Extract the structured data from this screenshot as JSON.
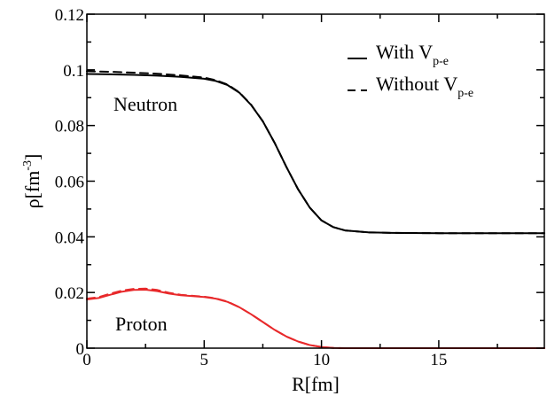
{
  "chart_data": {
    "type": "line",
    "xlabel": "R[fm]",
    "ylabel": {
      "base": "ρ[fm",
      "sup": "-3",
      "close": "]"
    },
    "xlim": [
      0,
      19.5
    ],
    "ylim": [
      0,
      0.12
    ],
    "x_ticks": [
      0,
      5,
      10,
      15
    ],
    "y_ticks": [
      0,
      0.02,
      0.04,
      0.06,
      0.08,
      0.1,
      0.12
    ],
    "x_tick_labels": [
      "0",
      "5",
      "10",
      "15"
    ],
    "y_tick_labels": [
      "0",
      "0.02",
      "0.04",
      "0.06",
      "0.08",
      "0.1",
      "0.12"
    ],
    "grid": false,
    "legend": {
      "placement": "top-right",
      "entries": [
        {
          "style": "solid",
          "text": "With V",
          "sub": "p-e"
        },
        {
          "style": "dashed",
          "text": "Without V",
          "sub": "p-e"
        }
      ]
    },
    "annotations": [
      {
        "text": "Neutron",
        "color": "#000000"
      },
      {
        "text": "Proton",
        "color": "#e8292b"
      }
    ],
    "series": [
      {
        "group": "neutron",
        "style": "solid",
        "color": "#000000",
        "x": [
          0,
          1,
          2,
          3,
          4,
          5,
          5.5,
          6,
          6.5,
          7,
          7.5,
          8,
          8.5,
          9,
          9.5,
          10,
          10.5,
          11,
          12,
          13,
          15,
          19.5
        ],
        "y": [
          0.0985,
          0.0984,
          0.0982,
          0.0979,
          0.0975,
          0.0968,
          0.096,
          0.0945,
          0.0918,
          0.0874,
          0.0815,
          0.0738,
          0.0652,
          0.0571,
          0.0505,
          0.0459,
          0.0435,
          0.0423,
          0.0416,
          0.0414,
          0.0413,
          0.0413
        ]
      },
      {
        "group": "neutron",
        "style": "dashed",
        "color": "#000000",
        "x": [
          0,
          1,
          2,
          3,
          4,
          5,
          5.5,
          6,
          6.5,
          7,
          7.5,
          8,
          8.5,
          9,
          9.5,
          10,
          10.5,
          11,
          12,
          13,
          15,
          19.5
        ],
        "y": [
          0.0995,
          0.0993,
          0.099,
          0.0986,
          0.098,
          0.0972,
          0.0963,
          0.0947,
          0.0919,
          0.0875,
          0.0815,
          0.0738,
          0.0652,
          0.0571,
          0.0505,
          0.0459,
          0.0435,
          0.0423,
          0.0416,
          0.0414,
          0.0413,
          0.0413
        ]
      },
      {
        "group": "proton",
        "style": "solid",
        "color": "#e8292b",
        "x": [
          0,
          0.5,
          1,
          1.5,
          2,
          2.5,
          3,
          3.5,
          4,
          4.5,
          5,
          5.5,
          6,
          6.5,
          7,
          7.5,
          8,
          8.5,
          9,
          9.5,
          10,
          10.5,
          11,
          12,
          13,
          19.5
        ],
        "y": [
          0.0175,
          0.018,
          0.0192,
          0.0203,
          0.0209,
          0.021,
          0.0205,
          0.0196,
          0.019,
          0.0187,
          0.0184,
          0.0178,
          0.0166,
          0.0147,
          0.0122,
          0.0094,
          0.0066,
          0.0042,
          0.0024,
          0.0011,
          0.0004,
          0.0001,
          0.0,
          0.0,
          0.0,
          0.0
        ]
      },
      {
        "group": "proton",
        "style": "dashed",
        "color": "#e8292b",
        "x": [
          0,
          0.5,
          1,
          1.5,
          2,
          2.5,
          3,
          3.5,
          4,
          4.5,
          5,
          5.5,
          6,
          6.5,
          7,
          7.5,
          8,
          8.5,
          9,
          9.5,
          10,
          10.5,
          11,
          12,
          13,
          19.5
        ],
        "y": [
          0.0178,
          0.0183,
          0.0196,
          0.0207,
          0.0213,
          0.0214,
          0.0209,
          0.0199,
          0.0192,
          0.0188,
          0.0185,
          0.0179,
          0.0167,
          0.0147,
          0.0122,
          0.0094,
          0.0066,
          0.0042,
          0.0024,
          0.0011,
          0.0004,
          0.0001,
          0.0,
          0.0,
          0.0,
          0.0
        ]
      }
    ]
  }
}
